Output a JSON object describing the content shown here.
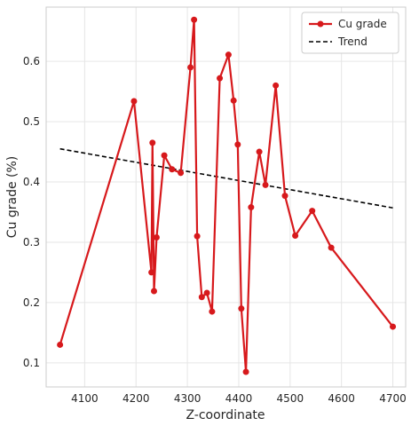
{
  "chart_data": {
    "type": "line",
    "xlabel": "Z-coordinate",
    "ylabel": "Cu grade (%)",
    "xlim": [
      4025,
      4725
    ],
    "ylim": [
      0.06,
      0.69
    ],
    "xticks": [
      4100,
      4200,
      4300,
      4400,
      4500,
      4600,
      4700
    ],
    "yticks": [
      0.1,
      0.2,
      0.3,
      0.4,
      0.5,
      0.6
    ],
    "grid": true,
    "legend_position": "top-right",
    "series": [
      {
        "name": "Cu grade",
        "color": "#d7191c",
        "style": "solid-line-with-circle-markers",
        "x": [
          4052,
          4196,
          4230,
          4232,
          4235,
          4240,
          4255,
          4270,
          4287,
          4306,
          4313,
          4319,
          4328,
          4338,
          4348,
          4363,
          4380,
          4390,
          4398,
          4405,
          4414,
          4424,
          4440,
          4452,
          4472,
          4490,
          4510,
          4543,
          4580,
          4700
        ],
        "y": [
          0.13,
          0.534,
          0.25,
          0.465,
          0.219,
          0.308,
          0.444,
          0.421,
          0.415,
          0.59,
          0.669,
          0.31,
          0.209,
          0.216,
          0.185,
          0.572,
          0.611,
          0.535,
          0.462,
          0.19,
          0.085,
          0.358,
          0.45,
          0.395,
          0.56,
          0.377,
          0.311,
          0.352,
          0.291,
          0.16
        ]
      },
      {
        "name": "Trend",
        "color": "#000000",
        "style": "dashed",
        "x": [
          4052,
          4700
        ],
        "y": [
          0.455,
          0.357
        ]
      }
    ]
  }
}
